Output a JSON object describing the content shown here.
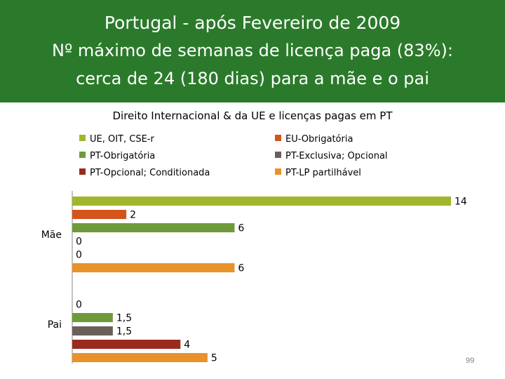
{
  "slide": {
    "title_lines": [
      "Portugal - após Fevereiro de 2009",
      "Nº máximo de semanas de licença paga (83%):",
      "cerca de 24 (180 dias) para a mãe e o pai"
    ],
    "page_number": "99",
    "banner_color": "#2b7a2b"
  },
  "chart_data": {
    "type": "bar",
    "orientation": "horizontal",
    "title": "Direito Internacional & da UE  e licenças pagas em PT",
    "categories": [
      "Mãe",
      "Pai"
    ],
    "series": [
      {
        "name": "UE, OIT, CSE-r",
        "color": "#a3b52b",
        "values": [
          14,
          null
        ],
        "labels": [
          "14",
          ""
        ]
      },
      {
        "name": "EU-Obrigatória",
        "color": "#d4541a",
        "values": [
          2,
          0
        ],
        "labels": [
          "2",
          "0"
        ]
      },
      {
        "name": "PT-Obrigatória",
        "color": "#6f9a3a",
        "values": [
          6,
          1.5
        ],
        "labels": [
          "6",
          "1,5"
        ]
      },
      {
        "name": "PT-Exclusiva; Opcional",
        "color": "#6b5f5a",
        "values": [
          0,
          1.5
        ],
        "labels": [
          "0",
          "1,5"
        ]
      },
      {
        "name": "PT-Opcional; Conditionada",
        "color": "#9a2a1e",
        "values": [
          0,
          4
        ],
        "labels": [
          "0",
          "4"
        ]
      },
      {
        "name": "PT-LP partilhável",
        "color": "#e8922a",
        "values": [
          6,
          5
        ],
        "labels": [
          "6",
          "5"
        ]
      }
    ],
    "xlim": [
      0,
      14
    ],
    "legend_position": "top",
    "grid": false
  }
}
